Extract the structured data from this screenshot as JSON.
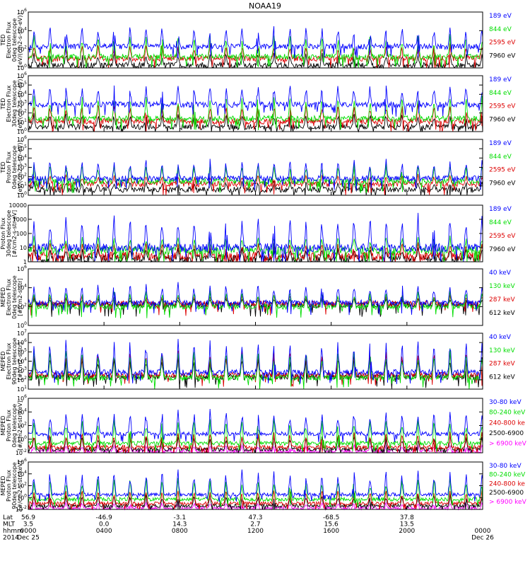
{
  "title": "NOAA19",
  "colors": {
    "black": "#000000",
    "blue": "#0000ff",
    "green": "#00dd00",
    "red": "#dd0000",
    "magenta": "#ff00ff",
    "frame": "#000000"
  },
  "chart_data": [
    {
      "type": "line",
      "instrument": "TED",
      "ylabel": [
        "TED",
        "Electron Flux",
        "0deg telescope",
        "[eV/(cm2-s-str-eV)]"
      ],
      "log": true,
      "ylim_exp": [
        0,
        6
      ],
      "yticks": [
        "10^0",
        "10^2",
        "10^4",
        "10^6"
      ],
      "series": [
        {
          "name": "7960 eV",
          "color": "black",
          "base": 0.3,
          "spike": 1.6
        },
        {
          "name": "2595 eV",
          "color": "red",
          "base": 1.0,
          "spike": 2.5
        },
        {
          "name": "844 eV",
          "color": "green",
          "base": 1.2,
          "spike": 3.5
        },
        {
          "name": "189 eV",
          "color": "blue",
          "base": 2.3,
          "spike": 4.5
        }
      ]
    },
    {
      "type": "line",
      "instrument": "TED",
      "ylabel": [
        "TED",
        "Electron Flux",
        "30deg telescope",
        "[eV/(cm2-s-str-eV)]"
      ],
      "log": true,
      "ylim_exp": [
        0,
        6
      ],
      "yticks": [
        "10^0",
        "10^1",
        "10^2",
        "10^3",
        "10^4",
        "10^5",
        "10^6"
      ],
      "series": [
        {
          "name": "7960 eV",
          "color": "black",
          "base": 0.5,
          "spike": 2.0
        },
        {
          "name": "2595 eV",
          "color": "red",
          "base": 1.1,
          "spike": 3.0
        },
        {
          "name": "844 eV",
          "color": "green",
          "base": 1.4,
          "spike": 3.8
        },
        {
          "name": "189 eV",
          "color": "blue",
          "base": 2.9,
          "spike": 5.0
        }
      ]
    },
    {
      "type": "line",
      "instrument": "TED",
      "ylabel": [
        "TED",
        "Proton Flux",
        "0deg telescope",
        "[eV/(cm2-s-str-eV)]"
      ],
      "log": true,
      "ylim_exp": [
        0,
        6
      ],
      "yticks": [
        "10^0",
        "10^1",
        "10^2",
        "10^3",
        "10^4",
        "10^5",
        "10^6"
      ],
      "series": [
        {
          "name": "7960 eV",
          "color": "black",
          "base": 0.6,
          "spike": 1.5
        },
        {
          "name": "2595 eV",
          "color": "red",
          "base": 1.2,
          "spike": 2.2
        },
        {
          "name": "844 eV",
          "color": "green",
          "base": 1.5,
          "spike": 3.4
        },
        {
          "name": "189 eV",
          "color": "blue",
          "base": 1.8,
          "spike": 3.8
        }
      ]
    },
    {
      "type": "line",
      "instrument": "TED",
      "ylabel": [
        "Proton Flux",
        "30deg telescope",
        "[#/cm2-s-str-eV]"
      ],
      "log": true,
      "ylim_exp": [
        0,
        4
      ],
      "yticks": [
        "1",
        "10",
        "100",
        "1000",
        "10000"
      ],
      "series": [
        {
          "name": "7960 eV",
          "color": "black",
          "base": 0.2,
          "spike": 1.0
        },
        {
          "name": "2595 eV",
          "color": "red",
          "base": 0.4,
          "spike": 1.4
        },
        {
          "name": "844 eV",
          "color": "green",
          "base": 0.8,
          "spike": 1.8
        },
        {
          "name": "189 eV",
          "color": "blue",
          "base": 1.0,
          "spike": 3.3
        }
      ]
    },
    {
      "type": "line",
      "instrument": "MEPED",
      "ylabel": [
        "MEPED",
        "Electron Flux",
        "0deg telescope",
        "[#/cm2-s-str]"
      ],
      "log": true,
      "ylim_exp": [
        0,
        6
      ],
      "yticks": [
        "10^0",
        "10^2",
        "10^4",
        "10^6"
      ],
      "series": [
        {
          "name": "612 keV",
          "color": "black",
          "base": 2.2,
          "spike": 2.9
        },
        {
          "name": "287 keV",
          "color": "red",
          "base": 2.3,
          "spike": 3.2
        },
        {
          "name": "130 keV",
          "color": "green",
          "base": 2.0,
          "spike": 3.6
        },
        {
          "name": "40 keV",
          "color": "blue",
          "base": 2.4,
          "spike": 4.5
        }
      ]
    },
    {
      "type": "line",
      "instrument": "MEPED",
      "ylabel": [
        "MEPED",
        "Electron Flux",
        "90deg telescope",
        "[#/cm2-s-str]"
      ],
      "log": true,
      "ylim_exp": [
        1,
        7
      ],
      "yticks": [
        "10^1",
        "10^2",
        "10^3",
        "10^4",
        "10^5",
        "10^6",
        "10^7"
      ],
      "series": [
        {
          "name": "612 keV",
          "color": "black",
          "base": 2.3,
          "spike": 4.5
        },
        {
          "name": "287 keV",
          "color": "red",
          "base": 2.5,
          "spike": 5.0
        },
        {
          "name": "130 keV",
          "color": "green",
          "base": 2.2,
          "spike": 5.3
        },
        {
          "name": "40 keV",
          "color": "blue",
          "base": 2.8,
          "spike": 6.2
        }
      ]
    },
    {
      "type": "line",
      "instrument": "MEPED",
      "ylabel": [
        "MEPED",
        "Proton Flux",
        "0deg telescope",
        "[#/cm2-s-str-keV]"
      ],
      "log": true,
      "ylim_exp": [
        -2,
        6
      ],
      "yticks": [
        "10^-2",
        "10^0",
        "10^2",
        "10^4",
        "10^6"
      ],
      "series": [
        {
          "name": "> 6900 keV",
          "color": "magenta",
          "base": -1.8,
          "spike": -0.8
        },
        {
          "name": "2500-6900",
          "color": "black",
          "base": -1.5,
          "spike": 0.5
        },
        {
          "name": "240-800 ke",
          "color": "red",
          "base": -1.2,
          "spike": 1.0
        },
        {
          "name": "80-240 keV",
          "color": "green",
          "base": -0.6,
          "spike": 3.0
        },
        {
          "name": "30-80 keV",
          "color": "blue",
          "base": 0.8,
          "spike": 4.2
        }
      ]
    },
    {
      "type": "line",
      "instrument": "MEPED",
      "ylabel": [
        "MEPED",
        "Proton Flux",
        "90deg telescope",
        "[#/cm2-s-str-keV]"
      ],
      "log": true,
      "ylim_exp": [
        -2,
        6
      ],
      "yticks": [
        "10^-2",
        "10^0",
        "10^2",
        "10^4",
        "10^6"
      ],
      "series": [
        {
          "name": "> 6900 keV",
          "color": "magenta",
          "base": -1.8,
          "spike": -0.8
        },
        {
          "name": "2500-6900",
          "color": "black",
          "base": -1.4,
          "spike": 0.5
        },
        {
          "name": "240-800 ke",
          "color": "red",
          "base": -1.0,
          "spike": 1.2
        },
        {
          "name": "80-240 keV",
          "color": "green",
          "base": -0.3,
          "spike": 3.2
        },
        {
          "name": "30-80 keV",
          "color": "blue",
          "base": 0.5,
          "spike": 4.6
        }
      ]
    }
  ],
  "x_axis": {
    "row_labels": [
      "Lat",
      "MLT",
      "hhmm",
      "2014"
    ],
    "ticks": [
      {
        "lat": "56.9",
        "mlt": "3.5",
        "hhmm": "0000",
        "date": "Dec 25"
      },
      {
        "lat": "-46.9",
        "mlt": "0.0",
        "hhmm": "0400",
        "date": ""
      },
      {
        "lat": "-3.1",
        "mlt": "14.3",
        "hhmm": "0800",
        "date": ""
      },
      {
        "lat": "47.3",
        "mlt": "2.7",
        "hhmm": "1200",
        "date": ""
      },
      {
        "lat": "-68.5",
        "mlt": "15.6",
        "hhmm": "1600",
        "date": ""
      },
      {
        "lat": "37.8",
        "mlt": "13.5",
        "hhmm": "2000",
        "date": ""
      },
      {
        "lat": "",
        "mlt": "",
        "hhmm": "0000",
        "date": "Dec 26"
      }
    ]
  }
}
